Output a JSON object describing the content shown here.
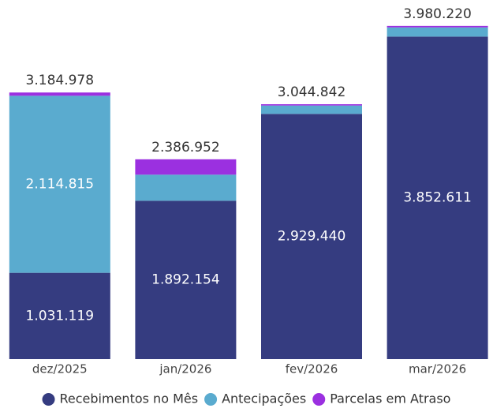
{
  "chart_data": {
    "type": "stacked_bar",
    "categories": [
      "dez/2025",
      "jan/2026",
      "fev/2026",
      "mar/2026"
    ],
    "series": [
      {
        "name": "Recebimentos no Mês",
        "color": "#353c80",
        "values": [
          1031119,
          1892154,
          2929440,
          3852611
        ],
        "value_labels": [
          "1.031.119",
          "1.892.154",
          "2.929.440",
          "3.852.611"
        ]
      },
      {
        "name": "Antecipações",
        "color": "#5aabcf",
        "values": [
          2114815,
          311000,
          100000,
          110000
        ],
        "value_labels": [
          "2.114.815",
          null,
          null,
          null
        ]
      },
      {
        "name": "Parcelas em Atraso",
        "color": "#9b30e0",
        "values": [
          39044,
          183798,
          15402,
          17609
        ],
        "value_labels": [
          null,
          null,
          null,
          null
        ]
      }
    ],
    "totals": [
      3184978,
      2386952,
      3044842,
      3980220
    ],
    "total_labels": [
      "3.184.978",
      "2.386.952",
      "3.044.842",
      "3.980.220"
    ],
    "ylim": [
      0,
      4290000
    ]
  }
}
